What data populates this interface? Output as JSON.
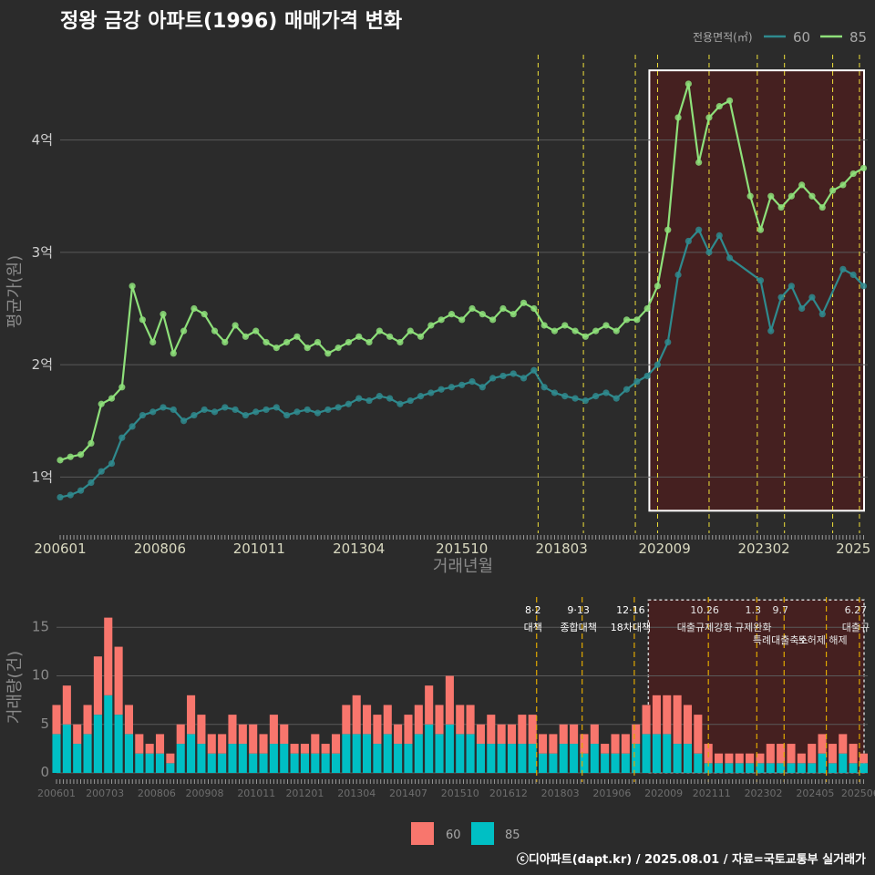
{
  "title": "정왕 금강 아파트(1996) 매매가격 변화",
  "legend_top": {
    "title": "전용면적(㎡)",
    "items": [
      "60",
      "85"
    ]
  },
  "legend_bottom": {
    "items": [
      "60",
      "85"
    ]
  },
  "footer": "ⓒ디아파트(dapt.kr) / 2025.08.01 / 자료=국토교통부 실거래가",
  "colors": {
    "background": "#2b2b2b",
    "series_60_line": "#2f8a8e",
    "series_85_line": "#8ee07a",
    "bar_60": "#f8766d",
    "bar_85": "#00bfc4",
    "policy_line": "#f0e13a",
    "policy_line_bottom": "#e0a800",
    "highlight_fill": "#4a1f1f",
    "highlight_border": "#ffffff"
  },
  "chart_data": [
    {
      "type": "line",
      "title": "정왕 금강 아파트(1996) 매매가격 변화",
      "xlabel": "거래년월",
      "ylabel": "평균가(원)",
      "x_tick_labels": [
        "200601",
        "200806",
        "201011",
        "201304",
        "201510",
        "201803",
        "202009",
        "202302",
        "2025"
      ],
      "y_tick_labels": [
        "1억",
        "2억",
        "3억",
        "4억"
      ],
      "y_ticks": [
        1,
        2,
        3,
        4
      ],
      "ylim": [
        0.5,
        4.8
      ],
      "xlim": [
        2006.0,
        2025.6
      ],
      "grid": true,
      "legend_placement": "top-right",
      "policy_dates": [
        2017.6,
        2018.7,
        2019.96,
        2020.5,
        2021.75,
        2022.92,
        2023.58,
        2024.75,
        2025.4
      ],
      "highlight_range": {
        "x": [
          2020.3,
          2025.6
        ],
        "y": [
          0.7,
          4.62
        ]
      },
      "series": [
        {
          "name": "60",
          "x": [
            2006.0,
            2006.25,
            2006.5,
            2006.75,
            2007.0,
            2007.25,
            2007.5,
            2007.75,
            2008.0,
            2008.25,
            2008.5,
            2008.75,
            2009.0,
            2009.25,
            2009.5,
            2009.75,
            2010.0,
            2010.25,
            2010.5,
            2010.75,
            2011.0,
            2011.25,
            2011.5,
            2011.75,
            2012.0,
            2012.25,
            2012.5,
            2012.75,
            2013.0,
            2013.25,
            2013.5,
            2013.75,
            2014.0,
            2014.25,
            2014.5,
            2014.75,
            2015.0,
            2015.25,
            2015.5,
            2015.75,
            2016.0,
            2016.25,
            2016.5,
            2016.75,
            2017.0,
            2017.25,
            2017.5,
            2017.75,
            2018.0,
            2018.25,
            2018.5,
            2018.75,
            2019.0,
            2019.25,
            2019.5,
            2019.75,
            2020.0,
            2020.25,
            2020.5,
            2020.75,
            2021.0,
            2021.25,
            2021.5,
            2021.75,
            2022.0,
            2022.25,
            2023.0,
            2023.25,
            2023.5,
            2023.75,
            2024.0,
            2024.25,
            2024.5,
            2025.0,
            2025.25,
            2025.5
          ],
          "values": [
            0.82,
            0.84,
            0.88,
            0.95,
            1.05,
            1.12,
            1.35,
            1.45,
            1.55,
            1.58,
            1.62,
            1.6,
            1.5,
            1.55,
            1.6,
            1.58,
            1.62,
            1.6,
            1.55,
            1.58,
            1.6,
            1.62,
            1.55,
            1.58,
            1.6,
            1.57,
            1.6,
            1.62,
            1.65,
            1.7,
            1.68,
            1.72,
            1.7,
            1.65,
            1.68,
            1.72,
            1.75,
            1.78,
            1.8,
            1.82,
            1.85,
            1.8,
            1.88,
            1.9,
            1.92,
            1.88,
            1.95,
            1.8,
            1.75,
            1.72,
            1.7,
            1.68,
            1.72,
            1.75,
            1.7,
            1.78,
            1.85,
            1.9,
            2.0,
            2.2,
            2.8,
            3.1,
            3.2,
            3.0,
            3.15,
            2.95,
            2.75,
            2.3,
            2.6,
            2.7,
            2.5,
            2.6,
            2.45,
            2.85,
            2.8,
            2.7
          ]
        },
        {
          "name": "85",
          "x": [
            2006.0,
            2006.25,
            2006.5,
            2006.75,
            2007.0,
            2007.25,
            2007.5,
            2007.75,
            2008.0,
            2008.25,
            2008.5,
            2008.75,
            2009.0,
            2009.25,
            2009.5,
            2009.75,
            2010.0,
            2010.25,
            2010.5,
            2010.75,
            2011.0,
            2011.25,
            2011.5,
            2011.75,
            2012.0,
            2012.25,
            2012.5,
            2012.75,
            2013.0,
            2013.25,
            2013.5,
            2013.75,
            2014.0,
            2014.25,
            2014.5,
            2014.75,
            2015.0,
            2015.25,
            2015.5,
            2015.75,
            2016.0,
            2016.25,
            2016.5,
            2016.75,
            2017.0,
            2017.25,
            2017.5,
            2017.75,
            2018.0,
            2018.25,
            2018.5,
            2018.75,
            2019.0,
            2019.25,
            2019.5,
            2019.75,
            2020.0,
            2020.25,
            2020.5,
            2020.75,
            2021.0,
            2021.25,
            2021.5,
            2021.75,
            2022.0,
            2022.25,
            2022.75,
            2023.0,
            2023.25,
            2023.5,
            2023.75,
            2024.0,
            2024.25,
            2024.5,
            2024.75,
            2025.0,
            2025.25,
            2025.5
          ],
          "values": [
            1.15,
            1.18,
            1.2,
            1.3,
            1.65,
            1.7,
            1.8,
            2.7,
            2.4,
            2.2,
            2.45,
            2.1,
            2.3,
            2.5,
            2.45,
            2.3,
            2.2,
            2.35,
            2.25,
            2.3,
            2.2,
            2.15,
            2.2,
            2.25,
            2.15,
            2.2,
            2.1,
            2.15,
            2.2,
            2.25,
            2.2,
            2.3,
            2.25,
            2.2,
            2.3,
            2.25,
            2.35,
            2.4,
            2.45,
            2.4,
            2.5,
            2.45,
            2.4,
            2.5,
            2.45,
            2.55,
            2.5,
            2.35,
            2.3,
            2.35,
            2.3,
            2.25,
            2.3,
            2.35,
            2.3,
            2.4,
            2.4,
            2.5,
            2.7,
            3.2,
            4.2,
            4.5,
            3.8,
            4.2,
            4.3,
            4.35,
            3.5,
            3.2,
            3.5,
            3.4,
            3.5,
            3.6,
            3.5,
            3.4,
            3.55,
            3.6,
            3.7,
            3.75
          ]
        }
      ]
    },
    {
      "type": "bar",
      "ylabel": "거래량(건)",
      "x_tick_labels": [
        "200601",
        "200703",
        "200806",
        "200908",
        "201011",
        "201201",
        "201304",
        "201407",
        "201510",
        "201612",
        "201803",
        "201906",
        "202009",
        "202111",
        "202302",
        "202405",
        "202506"
      ],
      "y_ticks": [
        0,
        5,
        10,
        15
      ],
      "ylim": [
        0,
        18.5
      ],
      "xlim": [
        2006.0,
        2025.6
      ],
      "grid": true,
      "legend_placement": "bottom",
      "highlight_range": {
        "x": [
          2020.3,
          2025.6
        ],
        "y": [
          0,
          18.2
        ]
      },
      "annotations": [
        {
          "x": 2017.6,
          "date": "8·2",
          "text": "대책"
        },
        {
          "x": 2018.7,
          "date": "9·13",
          "text": "종합대책"
        },
        {
          "x": 2019.96,
          "date": "12·16",
          "text": "18차대책"
        },
        {
          "x": 2021.75,
          "date": "10.26",
          "text": "대출규제강화"
        },
        {
          "x": 2022.92,
          "date": "1.3",
          "text": "규제완화"
        },
        {
          "x": 2023.58,
          "date": "9.7",
          "text": "특례대출축소"
        },
        {
          "x": 2024.6,
          "date": "",
          "text": "토허제 해제"
        },
        {
          "x": 2025.4,
          "date": "6.27",
          "text": "대출규"
        }
      ],
      "x": [
        2006.0,
        2006.25,
        2006.5,
        2006.75,
        2007.0,
        2007.25,
        2007.5,
        2007.75,
        2008.0,
        2008.25,
        2008.5,
        2008.75,
        2009.0,
        2009.25,
        2009.5,
        2009.75,
        2010.0,
        2010.25,
        2010.5,
        2010.75,
        2011.0,
        2011.25,
        2011.5,
        2011.75,
        2012.0,
        2012.25,
        2012.5,
        2012.75,
        2013.0,
        2013.25,
        2013.5,
        2013.75,
        2014.0,
        2014.25,
        2014.5,
        2014.75,
        2015.0,
        2015.25,
        2015.5,
        2015.75,
        2016.0,
        2016.25,
        2016.5,
        2016.75,
        2017.0,
        2017.25,
        2017.5,
        2017.75,
        2018.0,
        2018.25,
        2018.5,
        2018.75,
        2019.0,
        2019.25,
        2019.5,
        2019.75,
        2020.0,
        2020.25,
        2020.5,
        2020.75,
        2021.0,
        2021.25,
        2021.5,
        2021.75,
        2022.0,
        2022.25,
        2022.5,
        2022.75,
        2023.0,
        2023.25,
        2023.5,
        2023.75,
        2024.0,
        2024.25,
        2024.5,
        2024.75,
        2025.0,
        2025.25,
        2025.5
      ],
      "series": [
        {
          "name": "60",
          "values": [
            3,
            4,
            2,
            3,
            6,
            8,
            7,
            3,
            2,
            1,
            2,
            1,
            2,
            4,
            3,
            2,
            2,
            3,
            2,
            3,
            2,
            3,
            2,
            1,
            1,
            2,
            1,
            2,
            3,
            4,
            3,
            3,
            3,
            2,
            3,
            3,
            4,
            3,
            5,
            3,
            3,
            2,
            3,
            2,
            2,
            3,
            3,
            2,
            2,
            2,
            2,
            2,
            2,
            1,
            2,
            2,
            2,
            3,
            4,
            4,
            5,
            4,
            4,
            2,
            1,
            1,
            1,
            1,
            1,
            2,
            2,
            2,
            1,
            2,
            2,
            2,
            2,
            2,
            1
          ]
        },
        {
          "name": "85",
          "values": [
            4,
            5,
            3,
            4,
            6,
            8,
            6,
            4,
            2,
            2,
            2,
            1,
            3,
            4,
            3,
            2,
            2,
            3,
            3,
            2,
            2,
            3,
            3,
            2,
            2,
            2,
            2,
            2,
            4,
            4,
            4,
            3,
            4,
            3,
            3,
            4,
            5,
            4,
            5,
            4,
            4,
            3,
            3,
            3,
            3,
            3,
            3,
            2,
            2,
            3,
            3,
            2,
            3,
            2,
            2,
            2,
            3,
            4,
            4,
            4,
            3,
            3,
            2,
            1,
            1,
            1,
            1,
            1,
            1,
            1,
            1,
            1,
            1,
            1,
            2,
            1,
            2,
            1,
            1
          ]
        }
      ]
    }
  ]
}
